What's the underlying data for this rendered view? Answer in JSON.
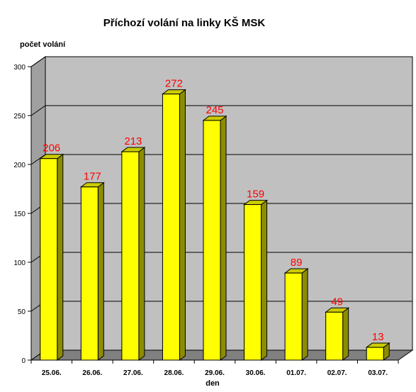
{
  "chart_data": {
    "type": "bar",
    "title": "Příchozí volání na linky KŠ MSK",
    "ylabel": "počet volání",
    "xlabel": "den",
    "categories": [
      "25.06.",
      "26.06.",
      "27.06.",
      "28.06.",
      "29.06.",
      "30.06.",
      "01.07.",
      "02.07.",
      "03.07."
    ],
    "values": [
      206,
      177,
      213,
      272,
      245,
      159,
      89,
      49,
      13
    ],
    "ylim": [
      0,
      300
    ],
    "yticks": [
      0,
      50,
      100,
      150,
      200,
      250,
      300
    ],
    "grid": true,
    "legend": "none",
    "colors": {
      "bar_front": "#ffff00",
      "bar_side": "#8c8c00",
      "bar_top": "#cccc00",
      "plot_wall": "#c0c0c0",
      "floor": "#808080",
      "data_label": "#ff0000"
    }
  }
}
